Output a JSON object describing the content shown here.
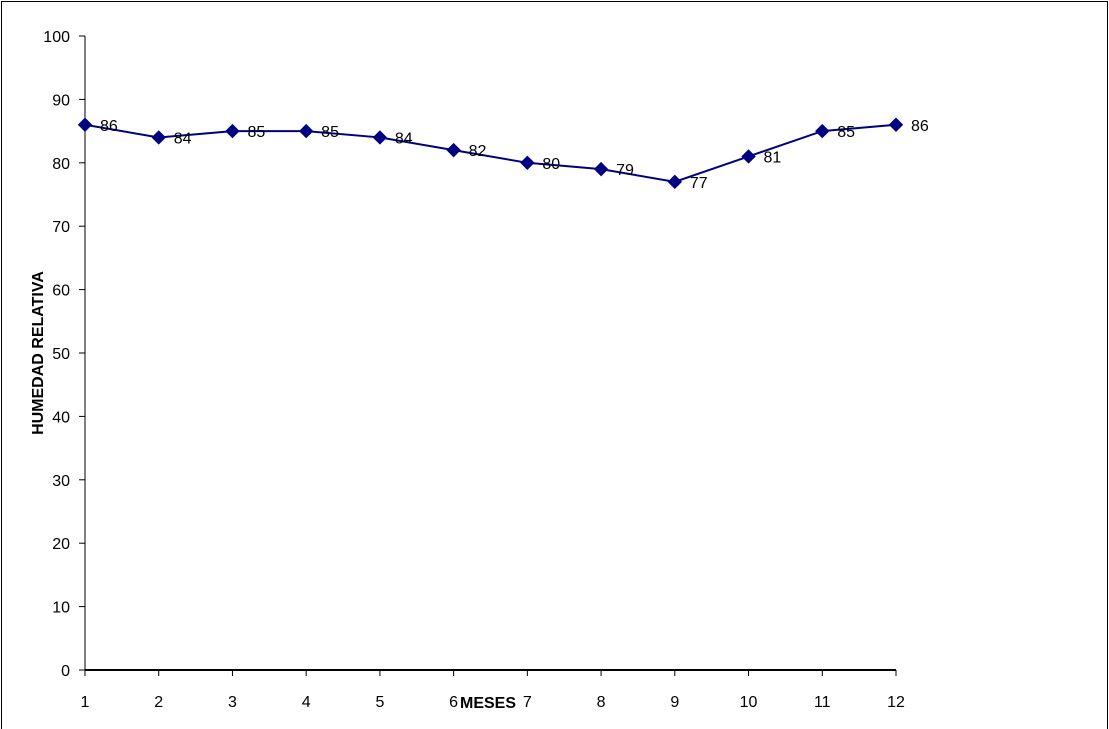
{
  "chart_data": {
    "type": "line",
    "title": "",
    "xlabel": "MESES",
    "ylabel": "HUMEDAD RELATIVA",
    "x": [
      1,
      2,
      3,
      4,
      5,
      6,
      7,
      8,
      9,
      10,
      11,
      12
    ],
    "ylim": [
      0,
      100
    ],
    "yticks": [
      0,
      10,
      20,
      30,
      40,
      50,
      60,
      70,
      80,
      90,
      100
    ],
    "grid": false,
    "legend": "none",
    "series": [
      {
        "values": [
          86,
          84,
          85,
          85,
          84,
          82,
          80,
          79,
          77,
          81,
          85,
          86
        ],
        "color": "#000080",
        "marker": "diamond"
      }
    ]
  }
}
